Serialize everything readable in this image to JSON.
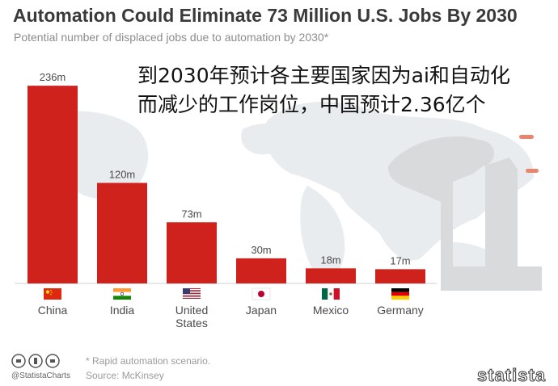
{
  "header": {
    "title": "Automation Could Eliminate 73 Million U.S. Jobs By 2030",
    "subtitle": "Potential number of displaced jobs due to automation by 2030*"
  },
  "overlay_text": {
    "line1": "到2030年预计各主要国家因为ai和自动化",
    "line2": "而减少的工作岗位，中国预计2.36亿个"
  },
  "footer": {
    "brand": "@StatistaCharts",
    "note": "* Rapid automation scenario.",
    "source": "Source: McKinsey",
    "watermark": "statista"
  },
  "colors": {
    "bar": "#d0221d",
    "axis": "#cfcfcf",
    "label": "#4a4a4a",
    "background_map": "#e9ecee"
  },
  "chart_data": {
    "type": "bar",
    "title": "Automation Could Eliminate 73 Million U.S. Jobs By 2030",
    "xlabel": "",
    "ylabel": "",
    "ylim": [
      0,
      240
    ],
    "grid": false,
    "categories": [
      "China",
      "India",
      "United States",
      "Japan",
      "Mexico",
      "Germany"
    ],
    "category_lines": [
      [
        "China"
      ],
      [
        "India"
      ],
      [
        "United",
        "States"
      ],
      [
        "Japan"
      ],
      [
        "Mexico"
      ],
      [
        "Germany"
      ]
    ],
    "flags": [
      "china-flag-icon",
      "india-flag-icon",
      "united-states-flag-icon",
      "japan-flag-icon",
      "mexico-flag-icon",
      "germany-flag-icon"
    ],
    "values": [
      236,
      120,
      73,
      30,
      18,
      17
    ],
    "value_labels": [
      "236m",
      "120m",
      "73m",
      "30m",
      "18m",
      "17m"
    ]
  }
}
